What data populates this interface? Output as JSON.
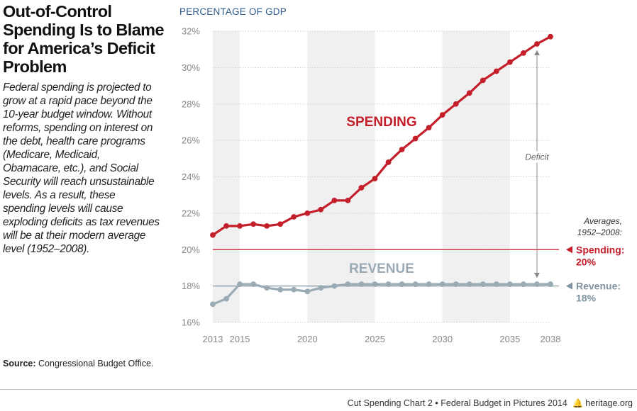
{
  "header": {
    "title": "Out-of-Control Spending Is to Blame for America’s Deficit Problem",
    "subtitle": "Federal spending is projected to grow at a rapid pace beyond the 10-year budget window. Without reforms, spending on interest on the debt, health care programs (Medicare, Medicaid, Obamacare, etc.), and Social Security will reach unsustainable levels. As a result, these spending levels will cause exploding deficits as tax revenues will be at their modern average level (1952–2008)."
  },
  "source": {
    "label": "Source:",
    "text": "Congressional Budget Office."
  },
  "footer": {
    "chart_id": "Cut Spending Chart 2",
    "separator": "•",
    "publication": "Federal Budget in Pictures 2014",
    "site": "heritage.org",
    "logo_icon": "liberty-bell-icon"
  },
  "chart_data": {
    "type": "line",
    "ylabel": "PERCENTAGE OF GDP",
    "ylim": [
      16,
      32
    ],
    "yticks": [
      "16%",
      "18%",
      "20%",
      "22%",
      "24%",
      "26%",
      "28%",
      "30%",
      "32%"
    ],
    "xlim": [
      2013,
      2038
    ],
    "xticks": [
      "2013",
      "2015",
      "2020",
      "2025",
      "2030",
      "2035",
      "2038"
    ],
    "shaded_bands": [
      [
        2013,
        2015
      ],
      [
        2020,
        2025
      ],
      [
        2030,
        2035
      ]
    ],
    "x": [
      2013,
      2014,
      2015,
      2016,
      2017,
      2018,
      2019,
      2020,
      2021,
      2022,
      2023,
      2024,
      2025,
      2026,
      2027,
      2028,
      2029,
      2030,
      2031,
      2032,
      2033,
      2034,
      2035,
      2036,
      2037,
      2038
    ],
    "series": [
      {
        "name": "SPENDING",
        "color": "#c41e2a",
        "values": [
          20.8,
          21.3,
          21.3,
          21.4,
          21.3,
          21.4,
          21.8,
          22.0,
          22.2,
          22.7,
          22.7,
          23.4,
          23.9,
          24.8,
          25.5,
          26.1,
          26.7,
          27.4,
          28.0,
          28.6,
          29.3,
          29.8,
          30.3,
          30.8,
          31.3,
          31.7
        ]
      },
      {
        "name": "REVENUE",
        "color": "#9aabb5",
        "values": [
          17.0,
          17.3,
          18.1,
          18.1,
          17.9,
          17.8,
          17.8,
          17.7,
          17.9,
          18.0,
          18.1,
          18.1,
          18.1,
          18.1,
          18.1,
          18.1,
          18.1,
          18.1,
          18.1,
          18.1,
          18.1,
          18.1,
          18.1,
          18.1,
          18.1,
          18.1
        ]
      }
    ],
    "averages": {
      "heading": "Averages, 1952–2008:",
      "lines": [
        {
          "label": "Spending:",
          "value_label": "20%",
          "value": 20,
          "color": "#c41e2a"
        },
        {
          "label": "Revenue:",
          "value_label": "18%",
          "value": 18,
          "color": "#7e93a0"
        }
      ]
    },
    "annotations": {
      "deficit": "Deficit",
      "deficit_year": 2037
    }
  }
}
